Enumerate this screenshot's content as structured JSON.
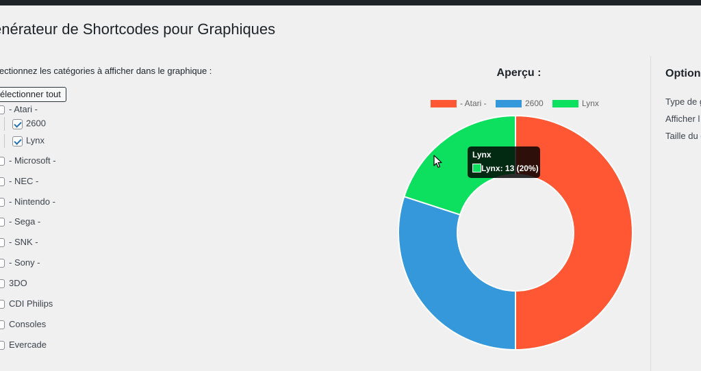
{
  "header": {
    "title": "énérateur de Shortcodes pour Graphiques"
  },
  "categories": {
    "instruction": "lectionnez les catégories à afficher dans le graphique :",
    "select_all_label": "électionner tout",
    "atari": {
      "label": "- Atari -",
      "children": [
        {
          "label": "2600",
          "checked": true
        },
        {
          "label": "Lynx",
          "checked": true
        }
      ]
    },
    "items": [
      {
        "label": "- Microsoft -",
        "checked": false
      },
      {
        "label": "- NEC -",
        "checked": false
      },
      {
        "label": "- Nintendo -",
        "checked": false
      },
      {
        "label": "- Sega -",
        "checked": false
      },
      {
        "label": "- SNK -",
        "checked": false
      },
      {
        "label": "- Sony -",
        "checked": false
      },
      {
        "label": "3DO",
        "checked": false
      },
      {
        "label": "CDI Philips",
        "checked": false
      },
      {
        "label": "Consoles",
        "checked": false
      },
      {
        "label": "Evercade",
        "checked": false
      }
    ]
  },
  "preview": {
    "title": "Aperçu :",
    "tooltip": {
      "title": "Lynx",
      "value": "Lynx: 13 (20%)"
    }
  },
  "options": {
    "title": "Option",
    "labels": [
      "Type de g",
      "Afficher l",
      "Taille du g"
    ]
  },
  "chart_data": {
    "type": "doughnut",
    "labels": [
      "- Atari -",
      "2600",
      "Lynx"
    ],
    "values": [
      32.5,
      19.5,
      13
    ],
    "colors": [
      "#ff5733",
      "#3498db",
      "#0ce05e"
    ],
    "legend": "top"
  }
}
